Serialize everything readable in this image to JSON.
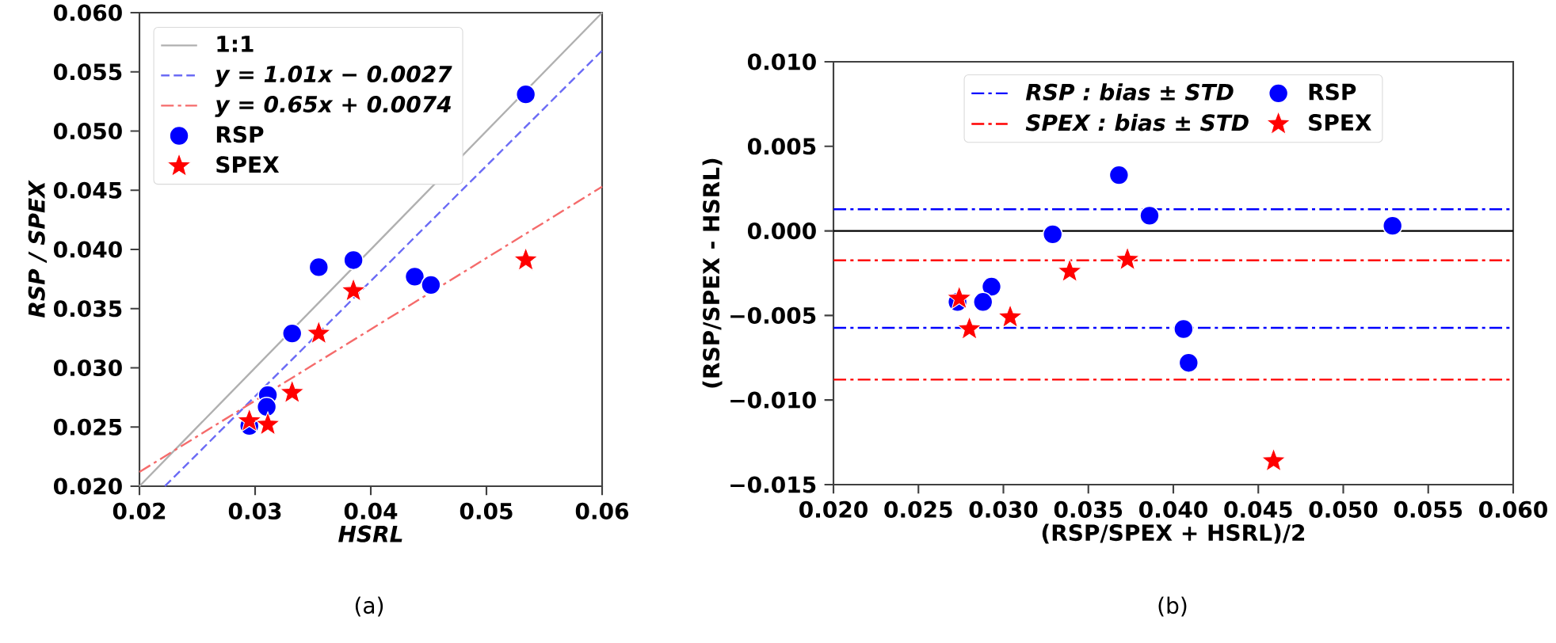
{
  "chart_data": [
    {
      "type": "scatter",
      "xlabel": "HSRL",
      "ylabel": "RSP / SPEX",
      "xlim": [
        0.02,
        0.06
      ],
      "ylim": [
        0.02,
        0.06
      ],
      "xticks": [
        0.02,
        0.03,
        0.04,
        0.05,
        {
          "value": 0.06,
          "label": "0.06"
        }
      ],
      "yticks": [
        {
          "value": 0.02,
          "label": "0.020"
        },
        {
          "value": 0.025,
          "label": "0.025"
        },
        {
          "value": 0.03,
          "label": "0.030"
        },
        {
          "value": 0.035,
          "label": "0.035"
        },
        {
          "value": 0.04,
          "label": "0.040"
        },
        {
          "value": 0.045,
          "label": "0.045"
        },
        {
          "value": 0.05,
          "label": "0.050"
        },
        {
          "value": 0.055,
          "label": "0.055"
        },
        {
          "value": 0.06,
          "label": "0.060"
        }
      ],
      "grid": false,
      "legend": "top left",
      "annotations": [
        {
          "text": "(a)"
        }
      ],
      "series": [
        {
          "name": "1:1",
          "type": "line",
          "color": "#b0b0b0",
          "line_style": "solid",
          "marker": "none",
          "x": [
            0.02,
            0.06
          ],
          "values": [
            0.02,
            0.06
          ]
        },
        {
          "name": "y = 1.01x − 0.0027",
          "type": "line",
          "color": "#6b6bf5",
          "line_style": "dashed",
          "marker": "none",
          "x": [
            0.0222,
            0.06
          ],
          "values": [
            0.02,
            0.0568
          ]
        },
        {
          "name": "y = 0.65x + 0.0074",
          "type": "line",
          "color": "#f56b6b",
          "line_style": "dashdot",
          "marker": "none",
          "x": [
            0.02,
            0.06
          ],
          "values": [
            0.0212,
            0.0453
          ]
        },
        {
          "name": "RSP",
          "type": "scatter",
          "color": "#0000ff",
          "marker": "circle",
          "x": [
            0.0534,
            0.0355,
            0.0385,
            0.0438,
            0.0452,
            0.0332,
            0.0311,
            0.031,
            0.0295
          ],
          "values": [
            0.0531,
            0.0385,
            0.0391,
            0.0377,
            0.037,
            0.0329,
            0.0277,
            0.0267,
            0.0251
          ]
        },
        {
          "name": "SPEX",
          "type": "scatter",
          "color": "#ff0000",
          "marker": "star",
          "x": [
            0.0534,
            0.0385,
            0.0355,
            0.0332,
            0.0295,
            0.0311
          ],
          "values": [
            0.0391,
            0.0365,
            0.0329,
            0.0279,
            0.0255,
            0.0252
          ]
        }
      ]
    },
    {
      "type": "scatter",
      "xlabel": "(RSP/SPEX + HSRL)/2",
      "ylabel": "(RSP/SPEX - HSRL)",
      "xlim": [
        0.02,
        0.06
      ],
      "ylim": [
        -0.015,
        0.01
      ],
      "xticks": [
        {
          "value": 0.02,
          "label": "0.020"
        },
        {
          "value": 0.025,
          "label": "0.025"
        },
        {
          "value": 0.03,
          "label": "0.030"
        },
        {
          "value": 0.035,
          "label": "0.035"
        },
        {
          "value": 0.04,
          "label": "0.040"
        },
        {
          "value": 0.045,
          "label": "0.045"
        },
        {
          "value": 0.05,
          "label": "0.050"
        },
        {
          "value": 0.055,
          "label": "0.055"
        },
        {
          "value": 0.06,
          "label": "0.060"
        }
      ],
      "yticks": [
        {
          "value": -0.015,
          "label": "−0.015"
        },
        {
          "value": -0.01,
          "label": "−0.010"
        },
        {
          "value": -0.005,
          "label": "−0.005"
        },
        {
          "value": 0,
          "label": "0.000"
        },
        {
          "value": 0.005,
          "label": "0.005"
        },
        {
          "value": 0.01,
          "label": "0.010"
        }
      ],
      "grid": false,
      "legend": "top",
      "annotations": [
        {
          "text": "(b)"
        }
      ],
      "ref_lines": [
        {
          "axis": "y",
          "value": 0.00128,
          "label": "RSP :  bias ± STD",
          "color": "#0000ff",
          "line_style": "dashdot"
        },
        {
          "axis": "y",
          "value": -0.00573,
          "color": "#0000ff",
          "line_style": "dashdot"
        },
        {
          "axis": "y",
          "value": -0.00174,
          "label": "SPEX :  bias ± STD",
          "color": "#ff0000",
          "line_style": "dashdot"
        },
        {
          "axis": "y",
          "value": -0.00879,
          "color": "#ff0000",
          "line_style": "dashdot"
        },
        {
          "axis": "y",
          "value": 0,
          "color": "#000000",
          "line_style": "solid"
        }
      ],
      "series": [
        {
          "name": "RSP",
          "type": "scatter",
          "color": "#0000ff",
          "marker": "circle",
          "x": [
            0.0368,
            0.0386,
            0.0329,
            0.0529,
            0.0293,
            0.0288,
            0.0273,
            0.0406,
            0.0409
          ],
          "values": [
            0.0033,
            0.0009,
            -0.0002,
            0.0003,
            -0.0033,
            -0.0042,
            -0.0042,
            -0.0058,
            -0.0078
          ]
        },
        {
          "name": "SPEX",
          "type": "scatter",
          "color": "#ff0000",
          "marker": "star",
          "x": [
            0.0274,
            0.028,
            0.0304,
            0.0339,
            0.0373,
            0.0459
          ],
          "values": [
            -0.004,
            -0.0058,
            -0.0051,
            -0.0024,
            -0.0017,
            -0.0136
          ]
        }
      ]
    }
  ]
}
